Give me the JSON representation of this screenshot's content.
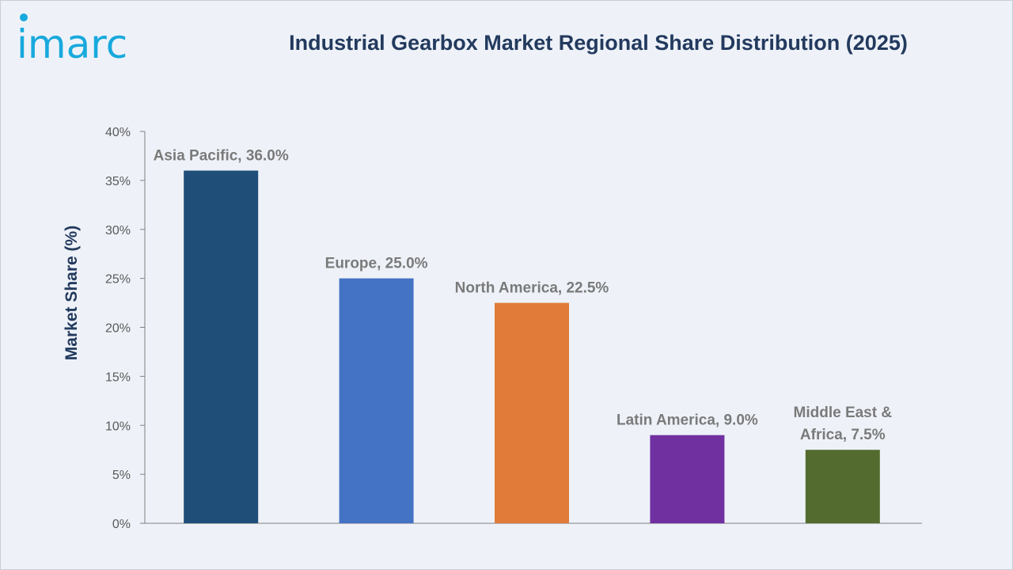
{
  "brand": {
    "logo_text": "imarc",
    "logo_color": "#18a9dd"
  },
  "chart_data": {
    "type": "bar",
    "title": "Industrial Gearbox Market Regional Share Distribution (2025)",
    "xlabel": "",
    "ylabel": "Market Share (%)",
    "ylim": [
      0,
      40
    ],
    "yticks": [
      "0%",
      "5%",
      "10%",
      "15%",
      "20%",
      "25%",
      "30%",
      "35%",
      "40%"
    ],
    "grid": false,
    "categories": [
      "Asia Pacific",
      "Europe",
      "North America",
      "Latin America",
      "Middle East & Africa"
    ],
    "values": [
      36.0,
      25.0,
      22.5,
      9.0,
      7.5
    ],
    "data_labels": [
      [
        "Asia Pacific, 36.0%"
      ],
      [
        "Europe, 25.0%"
      ],
      [
        "North America, 22.5%"
      ],
      [
        "Latin America, 9.0%"
      ],
      [
        "Middle East &",
        "Africa, 7.5%"
      ]
    ],
    "colors": [
      "#1f4e79",
      "#4472c4",
      "#e07b39",
      "#7030a0",
      "#546b2f"
    ]
  }
}
